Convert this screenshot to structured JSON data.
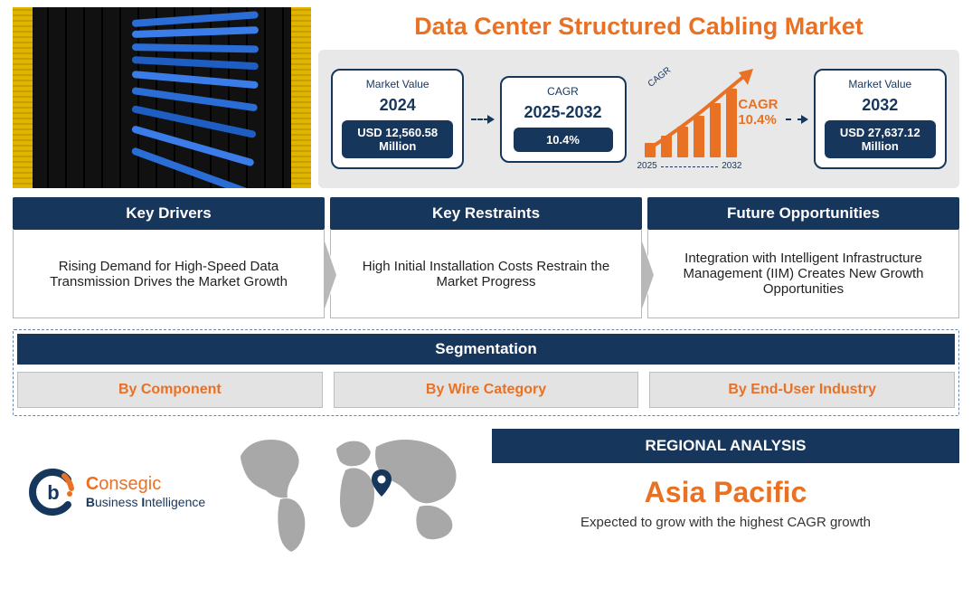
{
  "title": "Data Center Structured Cabling Market",
  "colors": {
    "accent": "#e97124",
    "navy": "#17365c",
    "strip_bg": "#e8e8e8",
    "seg_item_bg": "#e3e3e3",
    "map_fill": "#a8a8a8",
    "dashed_border": "#6b87a8"
  },
  "metrics": {
    "box_2024": {
      "line1": "Market Value",
      "line2": "2024",
      "pill": "USD 12,560.58 Million"
    },
    "box_cagr": {
      "line1": "CAGR",
      "line2": "2025-2032",
      "pill": "10.4%"
    },
    "growth": {
      "cagr_small": "CAGR",
      "cagr_label": "CAGR",
      "cagr_value": "10.4%",
      "year_from": "2025",
      "year_to": "2032",
      "bars": [
        16,
        24,
        34,
        46,
        60,
        76
      ],
      "bar_color": "#e97124",
      "arrow_color": "#e97124"
    },
    "box_2032": {
      "line1": "Market Value",
      "line2": "2032",
      "pill": "USD 27,637.12 Million"
    }
  },
  "factors": {
    "drivers": {
      "title": "Key Drivers",
      "text": "Rising Demand for High-Speed Data Transmission Drives the Market Growth"
    },
    "restraints": {
      "title": "Key Restraints",
      "text": "High Initial Installation Costs Restrain the Market Progress"
    },
    "opportunities": {
      "title": "Future Opportunities",
      "text": "Integration with Intelligent Infrastructure Management (IIM) Creates New Growth Opportunities"
    }
  },
  "segmentation": {
    "title": "Segmentation",
    "items": [
      "By Component",
      "By Wire Category",
      "By End-User Industry"
    ]
  },
  "logo": {
    "word1_initial": "C",
    "word1_rest": "onsegic",
    "word2_initial": "B",
    "word2_rest": "usiness ",
    "word3_initial": "I",
    "word3_rest": "ntelligence",
    "mark_primary": "#17365c",
    "mark_accent": "#e97124"
  },
  "regional": {
    "title": "REGIONAL ANALYSIS",
    "region": "Asia Pacific",
    "subtitle": "Expected to grow with the highest CAGR growth"
  }
}
